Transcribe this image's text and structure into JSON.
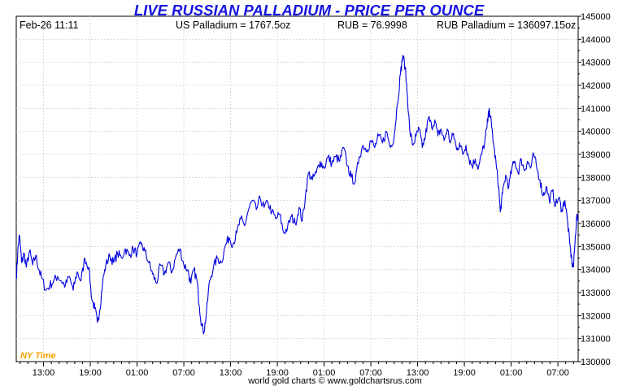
{
  "chart_data": {
    "type": "line",
    "title": "LIVE RUSSIAN PALLADIUM - PRICE PER OUNCE",
    "header": {
      "datetime": "Feb-26  11:11",
      "usd_price": "US Palladium = 1767.5oz",
      "fx_rate": "RUB = 76.9998",
      "rub_price": "RUB Palladium = 136097.15oz"
    },
    "timezone_label": "NY Time",
    "credit": "world gold charts © www.goldchartsrus.com",
    "ylim": [
      130000,
      145000
    ],
    "y_ticks": [
      130000,
      131000,
      132000,
      133000,
      134000,
      135000,
      136000,
      137000,
      138000,
      139000,
      140000,
      141000,
      142000,
      143000,
      144000,
      145000
    ],
    "x_tick_labels": [
      "13:00",
      "19:00",
      "01:00",
      "07:00",
      "13:00",
      "19:00",
      "01:00",
      "07:00",
      "13:00",
      "19:00",
      "01:00",
      "07:00"
    ],
    "x_range_hours": [
      -3.5,
      68.6
    ],
    "series": [
      {
        "color": "#0000dd",
        "points": [
          [
            -3.5,
            133600
          ],
          [
            -3.3,
            134800
          ],
          [
            -3.1,
            135500
          ],
          [
            -2.8,
            134300
          ],
          [
            -2.5,
            134700
          ],
          [
            -2.2,
            134100
          ],
          [
            -1.8,
            134800
          ],
          [
            -1.4,
            134200
          ],
          [
            -1.0,
            134600
          ],
          [
            -0.6,
            134000
          ],
          [
            -0.2,
            133600
          ],
          [
            0.3,
            133100
          ],
          [
            0.8,
            133300
          ],
          [
            1.3,
            133500
          ],
          [
            1.8,
            133700
          ],
          [
            2.3,
            133500
          ],
          [
            2.8,
            133300
          ],
          [
            3.3,
            133700
          ],
          [
            3.8,
            133100
          ],
          [
            4.3,
            133900
          ],
          [
            4.8,
            133500
          ],
          [
            5.3,
            134500
          ],
          [
            5.8,
            134100
          ],
          [
            6.2,
            132700
          ],
          [
            6.6,
            132300
          ],
          [
            6.9,
            131700
          ],
          [
            7.2,
            132200
          ],
          [
            7.6,
            133500
          ],
          [
            8.0,
            134200
          ],
          [
            8.5,
            134600
          ],
          [
            9.0,
            134300
          ],
          [
            9.5,
            134700
          ],
          [
            10.0,
            134500
          ],
          [
            10.5,
            134900
          ],
          [
            11.0,
            134600
          ],
          [
            11.5,
            134900
          ],
          [
            12.0,
            134700
          ],
          [
            12.5,
            135100
          ],
          [
            13.0,
            134800
          ],
          [
            13.5,
            134300
          ],
          [
            14.0,
            133800
          ],
          [
            14.5,
            133400
          ],
          [
            15.0,
            134200
          ],
          [
            15.5,
            133800
          ],
          [
            16.0,
            134300
          ],
          [
            16.5,
            133900
          ],
          [
            17.0,
            134600
          ],
          [
            17.5,
            134900
          ],
          [
            18.0,
            134200
          ],
          [
            18.5,
            134000
          ],
          [
            18.9,
            133400
          ],
          [
            19.3,
            134000
          ],
          [
            19.7,
            133500
          ],
          [
            20.0,
            132400
          ],
          [
            20.3,
            131600
          ],
          [
            20.6,
            131300
          ],
          [
            20.9,
            132100
          ],
          [
            21.3,
            133500
          ],
          [
            21.8,
            134100
          ],
          [
            22.3,
            134500
          ],
          [
            22.8,
            134300
          ],
          [
            23.3,
            135000
          ],
          [
            23.8,
            135400
          ],
          [
            24.3,
            135100
          ],
          [
            24.8,
            135600
          ],
          [
            25.3,
            136200
          ],
          [
            25.8,
            135900
          ],
          [
            26.3,
            136600
          ],
          [
            26.8,
            137000
          ],
          [
            27.3,
            136600
          ],
          [
            27.8,
            137100
          ],
          [
            28.3,
            136700
          ],
          [
            28.8,
            136900
          ],
          [
            29.3,
            136500
          ],
          [
            29.8,
            136200
          ],
          [
            30.3,
            136400
          ],
          [
            30.8,
            135600
          ],
          [
            31.3,
            135800
          ],
          [
            31.8,
            136300
          ],
          [
            32.3,
            136000
          ],
          [
            32.8,
            136700
          ],
          [
            33.2,
            136100
          ],
          [
            33.6,
            137200
          ],
          [
            34.0,
            138200
          ],
          [
            34.5,
            137900
          ],
          [
            35.0,
            138200
          ],
          [
            35.5,
            138700
          ],
          [
            36.0,
            138400
          ],
          [
            36.5,
            138900
          ],
          [
            37.0,
            138600
          ],
          [
            37.5,
            138900
          ],
          [
            38.0,
            138700
          ],
          [
            38.5,
            139300
          ],
          [
            39.0,
            138500
          ],
          [
            39.5,
            138000
          ],
          [
            40.0,
            137800
          ],
          [
            40.5,
            138900
          ],
          [
            41.0,
            139400
          ],
          [
            41.5,
            139200
          ],
          [
            42.0,
            139600
          ],
          [
            42.5,
            139300
          ],
          [
            43.0,
            139800
          ],
          [
            43.5,
            139500
          ],
          [
            44.0,
            140000
          ],
          [
            44.5,
            139300
          ],
          [
            45.0,
            139800
          ],
          [
            45.4,
            141200
          ],
          [
            45.8,
            142500
          ],
          [
            46.1,
            143300
          ],
          [
            46.4,
            142800
          ],
          [
            46.7,
            141500
          ],
          [
            47.0,
            140000
          ],
          [
            47.4,
            139400
          ],
          [
            47.8,
            139800
          ],
          [
            48.2,
            140100
          ],
          [
            48.6,
            139300
          ],
          [
            49.0,
            139800
          ],
          [
            49.4,
            140600
          ],
          [
            49.8,
            140200
          ],
          [
            50.2,
            140500
          ],
          [
            50.6,
            139800
          ],
          [
            51.0,
            140100
          ],
          [
            51.4,
            139600
          ],
          [
            51.8,
            140100
          ],
          [
            52.2,
            139500
          ],
          [
            52.6,
            139900
          ],
          [
            53.0,
            139200
          ],
          [
            53.4,
            139500
          ],
          [
            53.8,
            139000
          ],
          [
            54.2,
            139400
          ],
          [
            54.6,
            138800
          ],
          [
            55.0,
            138500
          ],
          [
            55.4,
            138800
          ],
          [
            55.8,
            138400
          ],
          [
            56.2,
            139000
          ],
          [
            56.6,
            139500
          ],
          [
            56.9,
            140200
          ],
          [
            57.2,
            141000
          ],
          [
            57.5,
            140200
          ],
          [
            57.8,
            139300
          ],
          [
            58.1,
            138500
          ],
          [
            58.4,
            137600
          ],
          [
            58.6,
            136500
          ],
          [
            58.9,
            137300
          ],
          [
            59.3,
            138100
          ],
          [
            59.7,
            137600
          ],
          [
            60.1,
            138400
          ],
          [
            60.5,
            138700
          ],
          [
            60.9,
            138200
          ],
          [
            61.3,
            138800
          ],
          [
            61.7,
            138300
          ],
          [
            62.1,
            138700
          ],
          [
            62.5,
            138400
          ],
          [
            62.9,
            139000
          ],
          [
            63.3,
            138400
          ],
          [
            63.7,
            137900
          ],
          [
            64.1,
            137200
          ],
          [
            64.5,
            137600
          ],
          [
            64.9,
            137000
          ],
          [
            65.3,
            137400
          ],
          [
            65.7,
            136800
          ],
          [
            66.1,
            137100
          ],
          [
            66.5,
            136600
          ],
          [
            66.9,
            137000
          ],
          [
            67.2,
            136200
          ],
          [
            67.5,
            135200
          ],
          [
            67.8,
            134300
          ],
          [
            68.0,
            134100
          ],
          [
            68.2,
            135200
          ],
          [
            68.4,
            136300
          ],
          [
            68.6,
            136100
          ]
        ]
      }
    ]
  }
}
